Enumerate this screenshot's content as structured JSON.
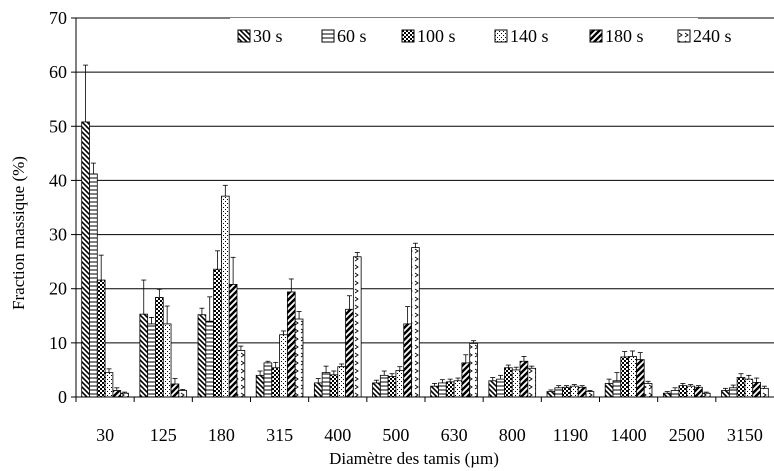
{
  "chart_data": {
    "type": "bar",
    "title": "",
    "xlabel": "Diamètre des tamis (µm)",
    "ylabel": "Fraction massique (%)",
    "ylim": [
      0,
      70
    ],
    "yticks": [
      0,
      10,
      20,
      30,
      40,
      50,
      60,
      70
    ],
    "grid": true,
    "legend_position": "top-right",
    "categories": [
      "30",
      "125",
      "180",
      "315",
      "400",
      "500",
      "630",
      "800",
      "1190",
      "1400",
      "2500",
      "3150"
    ],
    "series": [
      {
        "name": "30 s",
        "pattern": "diag-back",
        "values": [
          50.8,
          15.3,
          15.2,
          4.0,
          2.6,
          2.6,
          2.0,
          3.0,
          1.0,
          2.5,
          0.7,
          1.2
        ],
        "errors": [
          10.5,
          6.3,
          1.2,
          0.8,
          0.8,
          0.5,
          0.5,
          0.6,
          0.3,
          0.8,
          0.3,
          0.4
        ]
      },
      {
        "name": "60 s",
        "pattern": "horizontal",
        "values": [
          41.2,
          13.5,
          14.0,
          6.3,
          4.5,
          4.0,
          2.6,
          3.3,
          1.7,
          3.0,
          1.2,
          1.7
        ],
        "errors": [
          2.0,
          1.2,
          4.5,
          0.3,
          1.2,
          0.8,
          0.6,
          0.7,
          0.4,
          1.5,
          0.5,
          0.5
        ]
      },
      {
        "name": "100 s",
        "pattern": "checker",
        "values": [
          21.6,
          18.4,
          23.6,
          5.4,
          4.1,
          3.8,
          2.8,
          5.4,
          1.8,
          7.4,
          2.1,
          3.6
        ],
        "errors": [
          4.6,
          1.5,
          3.4,
          1.0,
          0.7,
          0.5,
          0.5,
          0.5,
          0.3,
          1.0,
          0.4,
          0.7
        ]
      },
      {
        "name": "140 s",
        "pattern": "dots",
        "values": [
          4.5,
          13.5,
          37.1,
          11.5,
          5.6,
          4.9,
          3.0,
          5.0,
          2.0,
          7.5,
          2.0,
          3.3
        ],
        "errors": [
          0.7,
          3.3,
          2.0,
          0.7,
          0.5,
          0.7,
          0.5,
          0.5,
          0.3,
          1.0,
          0.3,
          0.7
        ]
      },
      {
        "name": "180 s",
        "pattern": "diag-thick",
        "values": [
          1.2,
          2.4,
          20.8,
          19.4,
          16.2,
          13.5,
          6.3,
          6.6,
          1.8,
          6.9,
          1.8,
          2.7
        ],
        "errors": [
          0.5,
          1.0,
          5.0,
          2.4,
          2.5,
          3.2,
          1.5,
          0.9,
          0.3,
          1.3,
          0.3,
          0.8
        ]
      },
      {
        "name": "240 s",
        "pattern": "chevron",
        "values": [
          0.7,
          1.2,
          8.6,
          14.4,
          25.9,
          27.6,
          9.9,
          5.3,
          1.0,
          2.5,
          0.7,
          1.6
        ],
        "errors": [
          0.2,
          0.2,
          0.8,
          1.4,
          0.8,
          0.8,
          0.5,
          0.4,
          0.2,
          0.4,
          0.2,
          0.4
        ]
      }
    ]
  }
}
